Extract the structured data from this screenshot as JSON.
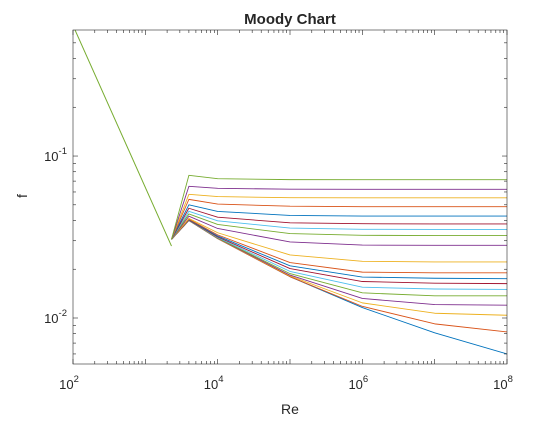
{
  "chart_data": {
    "type": "line",
    "title": "Moody Chart",
    "xlabel": "Re",
    "ylabel": "f",
    "xscale": "log",
    "yscale": "log",
    "xlim": [
      100,
      100000000
    ],
    "ylim": [
      0.0052,
      0.6
    ],
    "grid": false,
    "legend": "none",
    "x_ticks": [
      {
        "base": "10",
        "exp": "2",
        "value": 100
      },
      {
        "base": "10",
        "exp": "4",
        "value": 10000
      },
      {
        "base": "10",
        "exp": "6",
        "value": 1000000
      },
      {
        "base": "10",
        "exp": "8",
        "value": 100000000
      }
    ],
    "y_ticks": [
      {
        "base": "10",
        "exp": "-2",
        "value": 0.01
      },
      {
        "base": "10",
        "exp": "-1",
        "value": 0.1
      }
    ],
    "laminar": {
      "x": [
        100,
        2300
      ],
      "y": [
        0.64,
        0.0278
      ]
    },
    "series": [
      {
        "color": "#0072BD",
        "x": [
          2300,
          4000,
          10000,
          100000,
          1000000,
          10000000,
          100000000
        ],
        "y": [
          0.0306,
          0.04,
          0.0309,
          0.018,
          0.0116,
          0.0081,
          0.006
        ]
      },
      {
        "color": "#D95319",
        "x": [
          2300,
          4000,
          10000,
          100000,
          1000000,
          10000000,
          100000000
        ],
        "y": [
          0.0306,
          0.04,
          0.0309,
          0.018,
          0.0118,
          0.0092,
          0.0082
        ]
      },
      {
        "color": "#EDB120",
        "x": [
          2300,
          4000,
          10000,
          100000,
          1000000,
          10000000,
          100000000
        ],
        "y": [
          0.0306,
          0.04,
          0.031,
          0.0182,
          0.0124,
          0.0107,
          0.0104
        ]
      },
      {
        "color": "#7E2F8E",
        "x": [
          2300,
          4000,
          10000,
          100000,
          1000000,
          10000000,
          100000000
        ],
        "y": [
          0.0306,
          0.04,
          0.0311,
          0.0184,
          0.0132,
          0.0121,
          0.012
        ]
      },
      {
        "color": "#77AC30",
        "x": [
          2300,
          4000,
          10000,
          100000,
          1000000,
          10000000,
          100000000
        ],
        "y": [
          0.0306,
          0.0401,
          0.0312,
          0.0188,
          0.0143,
          0.0137,
          0.0137
        ]
      },
      {
        "color": "#4DBEEE",
        "x": [
          2300,
          4000,
          10000,
          100000,
          1000000,
          10000000,
          100000000
        ],
        "y": [
          0.0306,
          0.0402,
          0.0314,
          0.0194,
          0.0155,
          0.0151,
          0.015
        ]
      },
      {
        "color": "#A2142F",
        "x": [
          2300,
          4000,
          10000,
          100000,
          1000000,
          10000000,
          100000000
        ],
        "y": [
          0.0306,
          0.0403,
          0.0317,
          0.0202,
          0.0168,
          0.0164,
          0.0163
        ]
      },
      {
        "color": "#0072BD",
        "x": [
          2300,
          4000,
          10000,
          100000,
          1000000,
          10000000,
          100000000
        ],
        "y": [
          0.0306,
          0.0405,
          0.0321,
          0.021,
          0.0179,
          0.0176,
          0.0175
        ]
      },
      {
        "color": "#D95319",
        "x": [
          2300,
          4000,
          10000,
          100000,
          1000000,
          10000000,
          100000000
        ],
        "y": [
          0.0306,
          0.0407,
          0.0326,
          0.022,
          0.0192,
          0.019,
          0.019
        ]
      },
      {
        "color": "#EDB120",
        "x": [
          2300,
          4000,
          10000,
          100000,
          1000000,
          10000000,
          100000000
        ],
        "y": [
          0.0306,
          0.0412,
          0.0336,
          0.0245,
          0.0224,
          0.0222,
          0.0222
        ]
      },
      {
        "color": "#7E2F8E",
        "x": [
          2300,
          4000,
          10000,
          100000,
          1000000,
          10000000,
          100000000
        ],
        "y": [
          0.0306,
          0.0425,
          0.0357,
          0.0295,
          0.0282,
          0.0281,
          0.0281
        ]
      },
      {
        "color": "#77AC30",
        "x": [
          2300,
          4000,
          10000,
          100000,
          1000000,
          10000000,
          100000000
        ],
        "y": [
          0.0306,
          0.0439,
          0.0378,
          0.0332,
          0.0324,
          0.0323,
          0.0323
        ]
      },
      {
        "color": "#4DBEEE",
        "x": [
          2300,
          4000,
          10000,
          100000,
          1000000,
          10000000,
          100000000
        ],
        "y": [
          0.0306,
          0.0456,
          0.0398,
          0.0359,
          0.0353,
          0.0352,
          0.0352
        ]
      },
      {
        "color": "#A2142F",
        "x": [
          2300,
          4000,
          10000,
          100000,
          1000000,
          10000000,
          100000000
        ],
        "y": [
          0.0306,
          0.0476,
          0.0419,
          0.0387,
          0.0382,
          0.0381,
          0.0381
        ]
      },
      {
        "color": "#0072BD",
        "x": [
          2300,
          4000,
          10000,
          100000,
          1000000,
          10000000,
          100000000
        ],
        "y": [
          0.0306,
          0.05,
          0.0455,
          0.043,
          0.0426,
          0.0426,
          0.0426
        ]
      },
      {
        "color": "#D95319",
        "x": [
          2300,
          4000,
          10000,
          100000,
          1000000,
          10000000,
          100000000
        ],
        "y": [
          0.0306,
          0.054,
          0.0505,
          0.049,
          0.0487,
          0.0487,
          0.0487
        ]
      },
      {
        "color": "#EDB120",
        "x": [
          2300,
          4000,
          10000,
          100000,
          1000000,
          10000000,
          100000000
        ],
        "y": [
          0.0306,
          0.058,
          0.0562,
          0.0553,
          0.0552,
          0.0552,
          0.0552
        ]
      },
      {
        "color": "#7E2F8E",
        "x": [
          2300,
          4000,
          10000,
          100000,
          1000000,
          10000000,
          100000000
        ],
        "y": [
          0.0306,
          0.065,
          0.0632,
          0.0624,
          0.0623,
          0.0623,
          0.0623
        ]
      },
      {
        "color": "#77AC30",
        "x": [
          2300,
          4000,
          10000,
          100000,
          1000000,
          10000000,
          100000000
        ],
        "y": [
          0.0306,
          0.076,
          0.0725,
          0.0715,
          0.0714,
          0.0714,
          0.0714
        ]
      }
    ]
  }
}
